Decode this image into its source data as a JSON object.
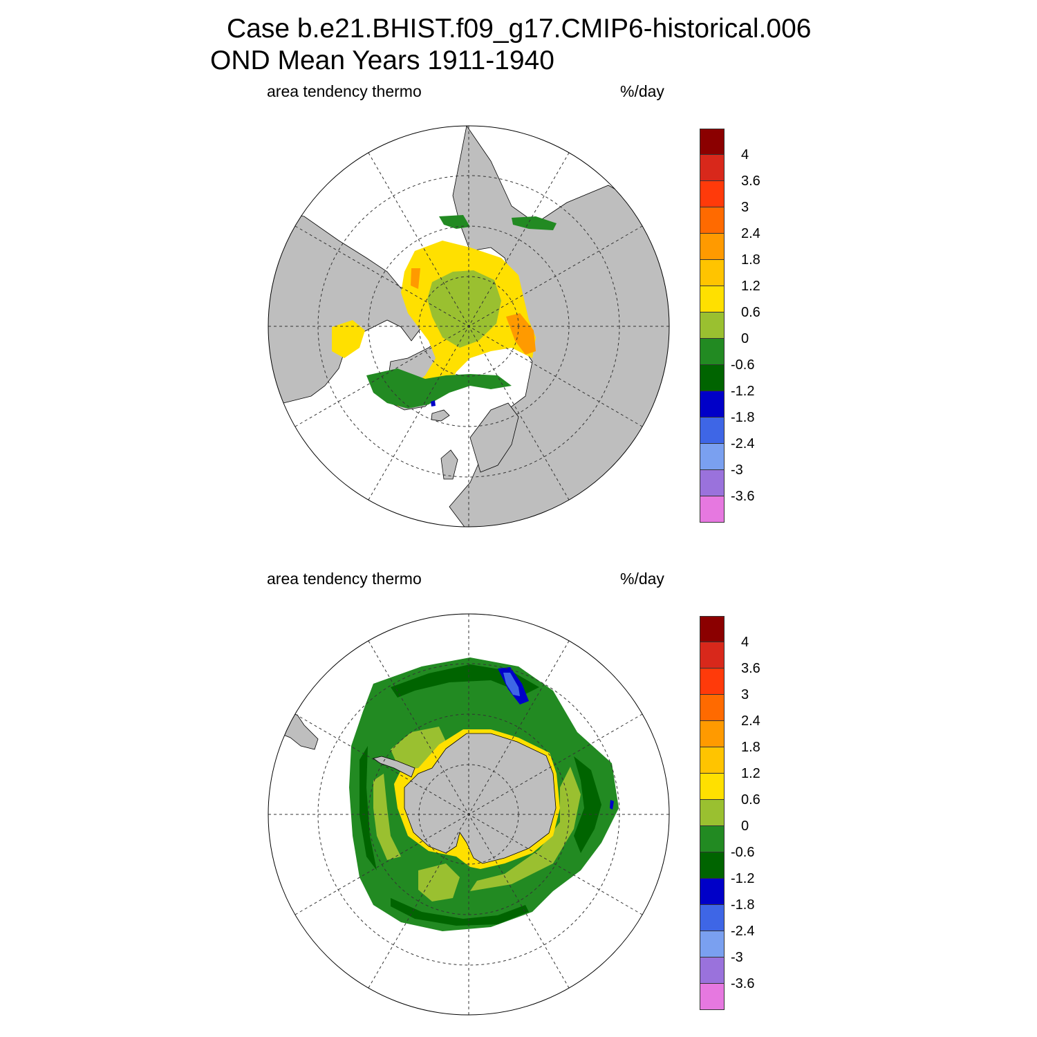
{
  "title_line1": "Case b.e21.BHIST.f09_g17.CMIP6-historical.006",
  "title_line2": "OND Mean   Years 1911-1940",
  "panels": [
    {
      "hemisphere": "north",
      "variable_label": "area tendency thermo",
      "units_label": "%/day"
    },
    {
      "hemisphere": "south",
      "variable_label": "area tendency thermo",
      "units_label": "%/day"
    }
  ],
  "colorbar": {
    "labels": [
      "4",
      "3.6",
      "3",
      "2.4",
      "1.8",
      "1.2",
      "0.6",
      "0",
      "-0.6",
      "-1.2",
      "-1.8",
      "-2.4",
      "-3",
      "-3.6"
    ],
    "colors": [
      "#8b0000",
      "#d8281b",
      "#ff3a0a",
      "#ff6a00",
      "#ff9a00",
      "#ffc400",
      "#ffe000",
      "#9ac030",
      "#228a22",
      "#006400",
      "#0000c8",
      "#3e66e6",
      "#7aa0f0",
      "#9a72dc",
      "#e678e0"
    ]
  },
  "map_colors": {
    "land": "#bebebe",
    "ice_free": "#ffffff",
    "outline": "#000000",
    "grid": "#333333"
  }
}
